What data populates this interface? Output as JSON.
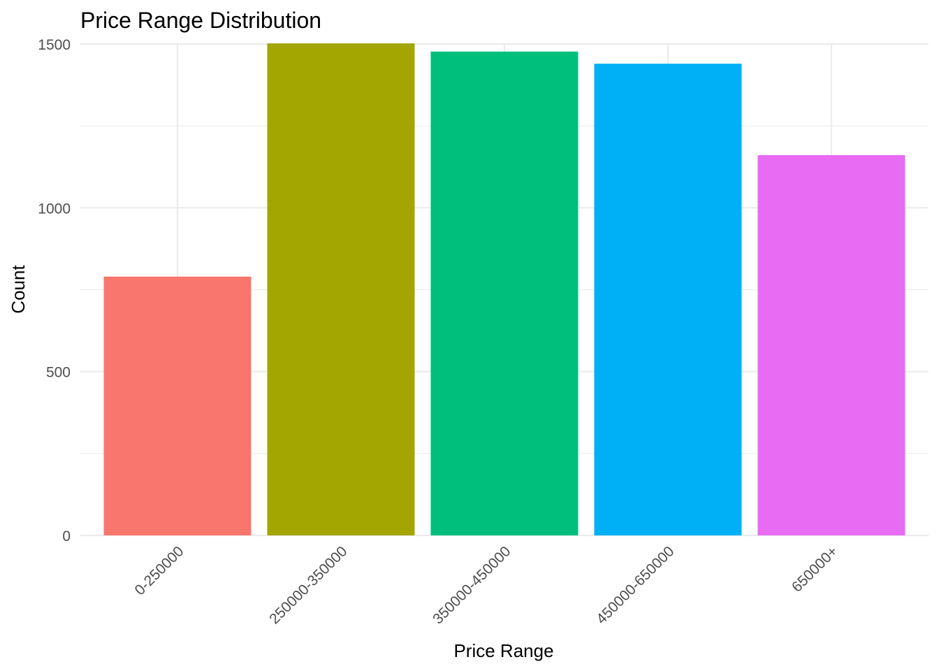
{
  "chart_data": {
    "type": "bar",
    "title": "Price Range Distribution",
    "xlabel": "Price Range",
    "ylabel": "Count",
    "categories": [
      "0-250000",
      "250000-350000",
      "350000-450000",
      "450000-650000",
      "650000+"
    ],
    "values": [
      790,
      1502,
      1477,
      1440,
      1161
    ],
    "colors": [
      "#F8766D",
      "#A3A500",
      "#00BF7D",
      "#00B0F6",
      "#E76BF3"
    ],
    "ylim": [
      0,
      1500
    ],
    "yticks": [
      0,
      500,
      1000,
      1500
    ],
    "ytick_labels": [
      "0",
      "500",
      "1000",
      "1500"
    ],
    "grid": true,
    "legend": "none"
  }
}
